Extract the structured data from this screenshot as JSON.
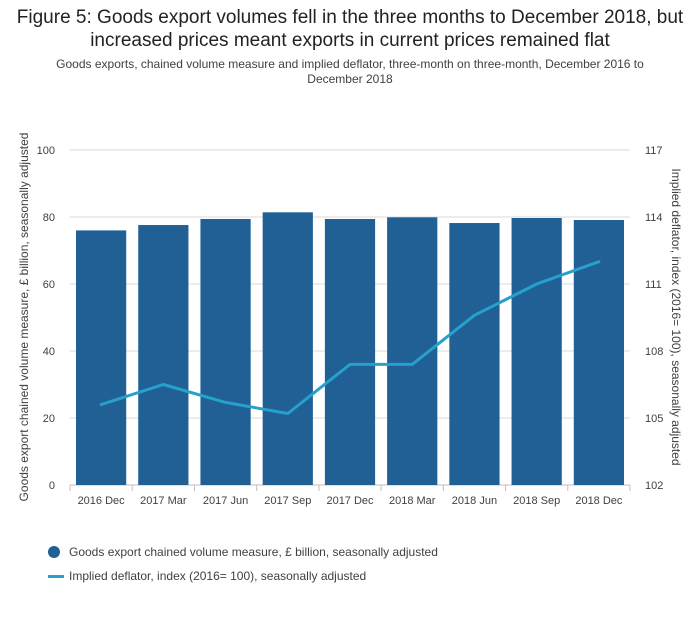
{
  "header": {
    "title": "Figure 5: Goods export volumes fell in the three months to December 2018, but increased prices meant exports in current prices remained flat",
    "subtitle": "Goods exports, chained volume measure and implied deflator, three-month on three-month, December 2016 to December 2018"
  },
  "colors": {
    "bars": "#206095",
    "line": "#27a0cc",
    "grid": "#d9d9d9",
    "text": "#414042"
  },
  "chart_data": {
    "type": "bar",
    "categories": [
      "2016 Dec",
      "2017 Mar",
      "2017 Jun",
      "2017 Sep",
      "2017 Dec",
      "2018 Mar",
      "2018 Jun",
      "2018 Sep",
      "2018 Dec"
    ],
    "series": [
      {
        "name": "Goods export chained volume measure, £ billion, seasonally adjusted",
        "type": "bar",
        "axis": "left",
        "values": [
          76.0,
          77.6,
          79.4,
          81.4,
          79.4,
          79.9,
          78.2,
          79.7,
          79.1
        ]
      },
      {
        "name": "Implied deflator, index (2016= 100), seasonally adjusted",
        "type": "line",
        "axis": "right",
        "values": [
          105.6,
          106.5,
          105.7,
          105.2,
          107.4,
          107.4,
          109.6,
          111.0,
          112.0
        ]
      }
    ],
    "ylabel": "Goods export chained volume measure, £ billion, seasonally adjusted",
    "ylabel_right": "Implied deflator, index (2016= 100), seasonally adjusted",
    "ylim": [
      0,
      100
    ],
    "yticks": [
      0,
      20,
      40,
      60,
      80,
      100
    ],
    "ylim_right": [
      102,
      117
    ],
    "yticks_right": [
      102,
      105,
      108,
      111,
      114,
      117
    ],
    "grid": true,
    "legend_position": "bottom-left"
  }
}
